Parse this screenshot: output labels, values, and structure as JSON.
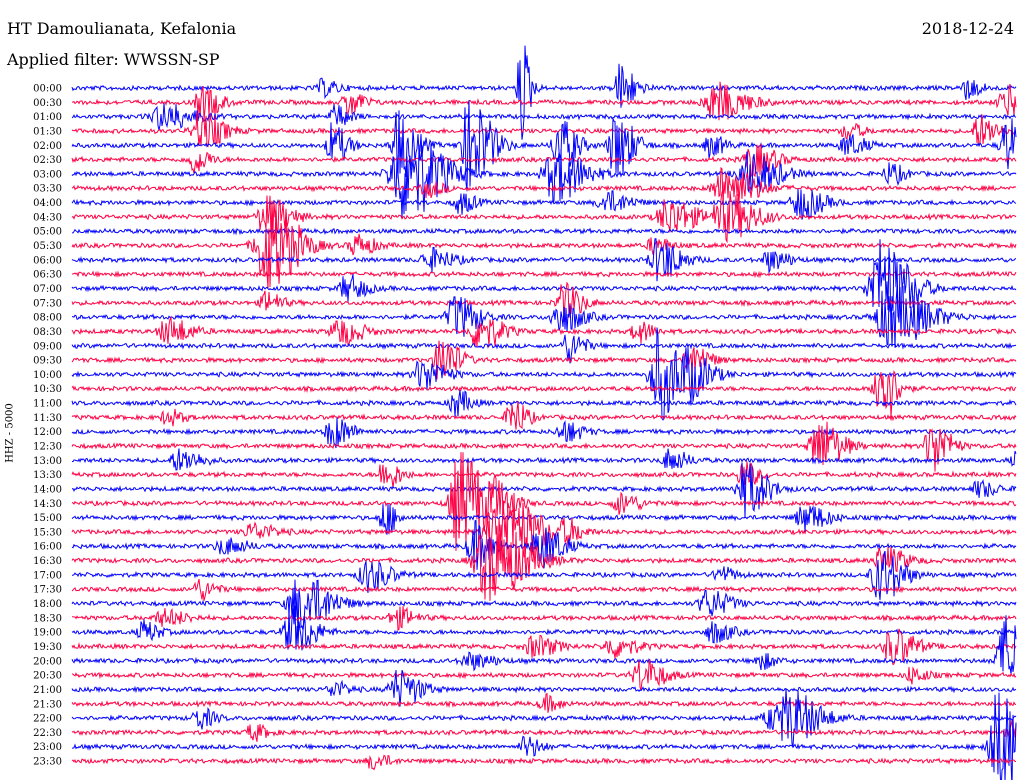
{
  "header": {
    "station": "HT Damoulianata, Kefalonia",
    "date": "2018-12-24",
    "filter": "Applied filter: WWSSN-SP"
  },
  "side_label": "HHZ - 5000",
  "colors": {
    "even_row": "#0000ff",
    "odd_row": "#ff0044",
    "background": "#ffffff"
  },
  "chart_data": {
    "type": "line",
    "title": "HT Damoulianata, Kefalonia",
    "subtitle": "Applied filter: WWSSN-SP",
    "ylabel": "HHZ - 5000",
    "xlabel": "",
    "row_labels": [
      "00:00",
      "00:30",
      "01:00",
      "01:30",
      "02:00",
      "02:30",
      "03:00",
      "03:30",
      "04:00",
      "04:30",
      "05:00",
      "05:30",
      "06:00",
      "06:30",
      "07:00",
      "07:30",
      "08:00",
      "08:30",
      "09:00",
      "09:30",
      "10:00",
      "10:30",
      "11:00",
      "11:30",
      "12:00",
      "12:30",
      "13:00",
      "13:30",
      "14:00",
      "14:30",
      "15:00",
      "15:30",
      "16:00",
      "16:30",
      "17:00",
      "17:30",
      "18:00",
      "18:30",
      "19:00",
      "19:30",
      "20:00",
      "20:30",
      "21:00",
      "21:30",
      "22:00",
      "22:30",
      "23:00",
      "23:30"
    ],
    "row_minutes": 30,
    "series_colors": [
      "#0000ff",
      "#ff0044"
    ],
    "events": [
      [
        0,
        0.475,
        1.0,
        0.006
      ],
      [
        0,
        0.58,
        0.45,
        0.01
      ],
      [
        0,
        0.945,
        0.2,
        0.01
      ],
      [
        0,
        0.265,
        0.15,
        0.01
      ],
      [
        1,
        0.137,
        0.3,
        0.012
      ],
      [
        1,
        0.292,
        0.25,
        0.01
      ],
      [
        1,
        0.68,
        0.35,
        0.02
      ],
      [
        1,
        0.99,
        0.3,
        0.015
      ],
      [
        2,
        0.095,
        0.25,
        0.02
      ],
      [
        2,
        0.278,
        0.2,
        0.01
      ],
      [
        3,
        0.135,
        0.35,
        0.015
      ],
      [
        3,
        0.96,
        0.3,
        0.012
      ],
      [
        3,
        0.82,
        0.15,
        0.01
      ],
      [
        4,
        0.275,
        0.4,
        0.01
      ],
      [
        4,
        0.345,
        0.65,
        0.012
      ],
      [
        4,
        0.42,
        0.85,
        0.015
      ],
      [
        4,
        0.515,
        0.5,
        0.012
      ],
      [
        4,
        0.575,
        0.65,
        0.012
      ],
      [
        4,
        0.675,
        0.2,
        0.01
      ],
      [
        4,
        0.82,
        0.2,
        0.012
      ],
      [
        4,
        0.99,
        0.5,
        0.012
      ],
      [
        5,
        0.128,
        0.25,
        0.01
      ],
      [
        5,
        0.72,
        0.3,
        0.015
      ],
      [
        6,
        0.35,
        0.85,
        0.025
      ],
      [
        6,
        0.51,
        0.5,
        0.02
      ],
      [
        6,
        0.715,
        0.4,
        0.02
      ],
      [
        6,
        0.865,
        0.2,
        0.01
      ],
      [
        7,
        0.69,
        0.4,
        0.02
      ],
      [
        7,
        0.375,
        0.15,
        0.01
      ],
      [
        8,
        0.565,
        0.2,
        0.015
      ],
      [
        8,
        0.41,
        0.2,
        0.01
      ],
      [
        8,
        0.77,
        0.3,
        0.015
      ],
      [
        9,
        0.205,
        0.4,
        0.015
      ],
      [
        9,
        0.63,
        0.35,
        0.018
      ],
      [
        9,
        0.69,
        0.45,
        0.02
      ],
      [
        11,
        0.205,
        0.85,
        0.02
      ],
      [
        11,
        0.3,
        0.2,
        0.012
      ],
      [
        11,
        0.615,
        0.15,
        0.01
      ],
      [
        12,
        0.378,
        0.2,
        0.015
      ],
      [
        12,
        0.62,
        0.4,
        0.015
      ],
      [
        12,
        0.738,
        0.2,
        0.012
      ],
      [
        14,
        0.29,
        0.25,
        0.012
      ],
      [
        14,
        0.855,
        0.9,
        0.02
      ],
      [
        15,
        0.205,
        0.2,
        0.01
      ],
      [
        15,
        0.52,
        0.35,
        0.012
      ],
      [
        16,
        0.405,
        0.4,
        0.015
      ],
      [
        16,
        0.515,
        0.3,
        0.015
      ],
      [
        16,
        0.865,
        0.6,
        0.025
      ],
      [
        17,
        0.1,
        0.25,
        0.015
      ],
      [
        17,
        0.282,
        0.25,
        0.015
      ],
      [
        17,
        0.43,
        0.35,
        0.015
      ],
      [
        17,
        0.598,
        0.2,
        0.01
      ],
      [
        18,
        0.525,
        0.3,
        0.01
      ],
      [
        19,
        0.39,
        0.45,
        0.012
      ],
      [
        19,
        0.655,
        0.3,
        0.012
      ],
      [
        20,
        0.37,
        0.3,
        0.015
      ],
      [
        20,
        0.62,
        0.85,
        0.015
      ],
      [
        20,
        0.654,
        0.35,
        0.015
      ],
      [
        21,
        0.855,
        0.8,
        0.01
      ],
      [
        22,
        0.405,
        0.25,
        0.01
      ],
      [
        23,
        0.1,
        0.15,
        0.01
      ],
      [
        23,
        0.465,
        0.35,
        0.01
      ],
      [
        24,
        0.275,
        0.3,
        0.012
      ],
      [
        24,
        0.52,
        0.2,
        0.012
      ],
      [
        25,
        0.79,
        0.5,
        0.015
      ],
      [
        25,
        0.91,
        0.5,
        0.012
      ],
      [
        26,
        0.112,
        0.2,
        0.015
      ],
      [
        26,
        0.632,
        0.2,
        0.012
      ],
      [
        26,
        1.0,
        0.15,
        0.01
      ],
      [
        27,
        0.33,
        0.3,
        0.01
      ],
      [
        27,
        0.71,
        0.25,
        0.01
      ],
      [
        28,
        0.712,
        0.5,
        0.015
      ],
      [
        28,
        0.96,
        0.15,
        0.012
      ],
      [
        29,
        0.41,
        0.95,
        0.018
      ],
      [
        29,
        0.45,
        0.3,
        0.012
      ],
      [
        29,
        0.58,
        0.2,
        0.012
      ],
      [
        30,
        0.33,
        0.35,
        0.008
      ],
      [
        30,
        0.775,
        0.25,
        0.015
      ],
      [
        31,
        0.452,
        0.8,
        0.025
      ],
      [
        31,
        0.19,
        0.15,
        0.015
      ],
      [
        31,
        0.523,
        0.2,
        0.01
      ],
      [
        32,
        0.425,
        0.45,
        0.012
      ],
      [
        32,
        0.495,
        0.4,
        0.015
      ],
      [
        32,
        0.16,
        0.15,
        0.015
      ],
      [
        33,
        0.44,
        0.75,
        0.025
      ],
      [
        33,
        0.858,
        0.25,
        0.015
      ],
      [
        34,
        0.312,
        0.3,
        0.015
      ],
      [
        34,
        0.855,
        0.5,
        0.015
      ],
      [
        34,
        0.685,
        0.15,
        0.01
      ],
      [
        35,
        0.134,
        0.2,
        0.01
      ],
      [
        36,
        0.24,
        0.55,
        0.02
      ],
      [
        36,
        0.672,
        0.25,
        0.015
      ],
      [
        37,
        0.342,
        0.2,
        0.012
      ],
      [
        37,
        0.096,
        0.15,
        0.015
      ],
      [
        38,
        0.232,
        0.45,
        0.015
      ],
      [
        38,
        0.678,
        0.2,
        0.012
      ],
      [
        38,
        0.075,
        0.2,
        0.01
      ],
      [
        39,
        0.488,
        0.2,
        0.015
      ],
      [
        39,
        0.572,
        0.2,
        0.015
      ],
      [
        39,
        0.868,
        0.35,
        0.015
      ],
      [
        40,
        0.99,
        0.85,
        0.018
      ],
      [
        40,
        0.42,
        0.15,
        0.015
      ],
      [
        40,
        0.728,
        0.15,
        0.01
      ],
      [
        41,
        0.602,
        0.3,
        0.015
      ],
      [
        41,
        0.888,
        0.15,
        0.01
      ],
      [
        42,
        0.344,
        0.35,
        0.015
      ],
      [
        42,
        0.276,
        0.15,
        0.01
      ],
      [
        43,
        0.5,
        0.15,
        0.01
      ],
      [
        44,
        0.133,
        0.2,
        0.01
      ],
      [
        44,
        0.76,
        0.45,
        0.02
      ],
      [
        44,
        0.74,
        0.2,
        0.015
      ],
      [
        45,
        0.19,
        0.15,
        0.01
      ],
      [
        45,
        0.995,
        0.25,
        0.01
      ],
      [
        46,
        0.98,
        1.0,
        0.018
      ],
      [
        46,
        0.48,
        0.2,
        0.01
      ],
      [
        47,
        0.318,
        0.15,
        0.01
      ]
    ]
  }
}
